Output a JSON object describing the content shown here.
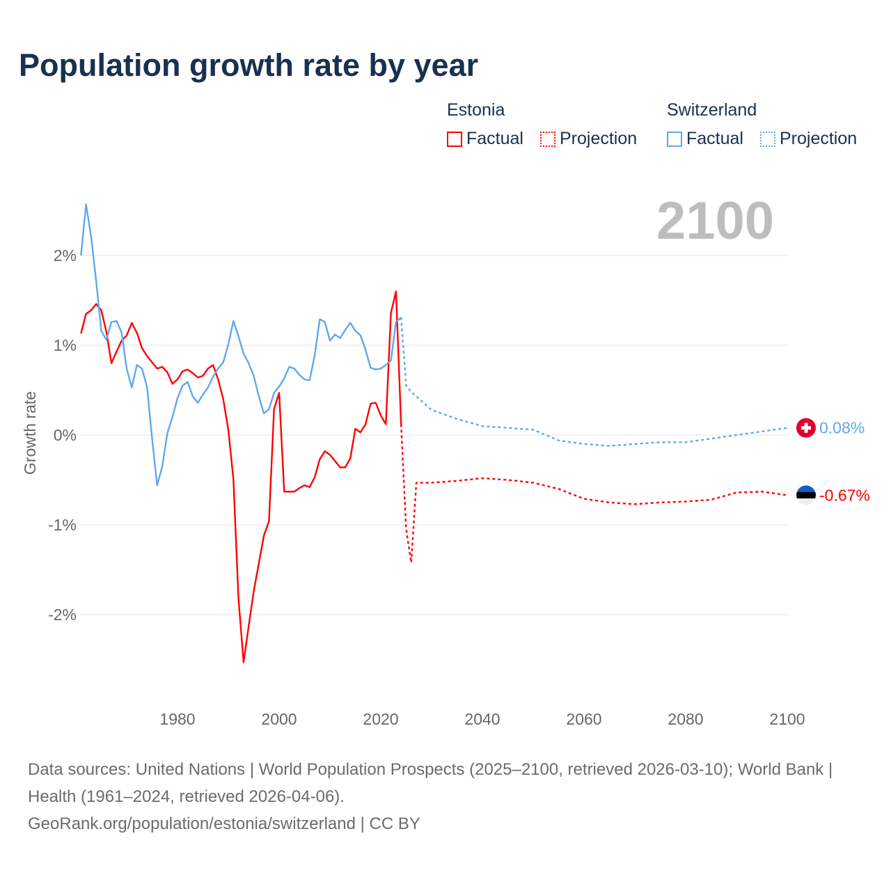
{
  "title": "Population growth rate by year",
  "legend": {
    "groups": [
      {
        "name": "Estonia",
        "factual": "Factual",
        "projection": "Projection",
        "color": "#ff0000"
      },
      {
        "name": "Switzerland",
        "factual": "Factual",
        "projection": "Projection",
        "color": "#5fa8ec"
      }
    ]
  },
  "current_year": "2100",
  "end_labels": {
    "switzerland": "0.08%",
    "estonia": "-0.67%"
  },
  "footer": {
    "line1": "Data sources: United Nations | World Population Prospects (2025–2100, retrieved 2026-03-10); World Bank | Health (1961–2024, retrieved 2026-04-06).",
    "line2": "GeoRank.org/population/estonia/switzerland | CC BY"
  },
  "chart_data": {
    "type": "line",
    "title": "Population growth rate by year",
    "xlabel": "",
    "ylabel": "Growth rate",
    "xlim": [
      1961,
      2100
    ],
    "ylim": [
      -2.9,
      2.6
    ],
    "grid": true,
    "legend_position": "top-right",
    "xticks": [
      1980,
      2000,
      2020,
      2040,
      2060,
      2080,
      2100
    ],
    "xtick_labels": [
      "1980",
      "2000",
      "2020",
      "2040",
      "2060",
      "2080",
      "2100"
    ],
    "yticks": [
      2,
      1,
      0,
      -1,
      -2
    ],
    "ytick_labels": [
      "2%",
      "1%",
      "0%",
      "-1%",
      "-2%"
    ],
    "series": [
      {
        "name": "Estonia",
        "kind": "factual",
        "color": "#ff0000",
        "x_start": 1961,
        "values": [
          1.13,
          1.35,
          1.39,
          1.46,
          1.39,
          1.15,
          0.8,
          0.93,
          1.05,
          1.11,
          1.25,
          1.14,
          0.97,
          0.88,
          0.81,
          0.74,
          0.76,
          0.7,
          0.57,
          0.62,
          0.71,
          0.73,
          0.69,
          0.64,
          0.66,
          0.74,
          0.78,
          0.62,
          0.4,
          0.06,
          -0.49,
          -1.82,
          -2.53,
          -2.13,
          -1.74,
          -1.43,
          -1.12,
          -0.96,
          0.29,
          0.47,
          -0.63,
          -0.63,
          -0.63,
          -0.59,
          -0.56,
          -0.58,
          -0.47,
          -0.27,
          -0.18,
          -0.22,
          -0.29,
          -0.36,
          -0.36,
          -0.26,
          0.07,
          0.03,
          0.12,
          0.35,
          0.36,
          0.22,
          0.12,
          1.36,
          1.6,
          0.12
        ]
      },
      {
        "name": "Estonia",
        "kind": "projection",
        "color": "#ff0000",
        "points": [
          [
            2024,
            0.12
          ],
          [
            2025,
            -1.05
          ],
          [
            2026,
            -1.42
          ],
          [
            2027,
            -0.53
          ],
          [
            2030,
            -0.53
          ],
          [
            2035,
            -0.51
          ],
          [
            2040,
            -0.48
          ],
          [
            2045,
            -0.5
          ],
          [
            2050,
            -0.53
          ],
          [
            2055,
            -0.6
          ],
          [
            2060,
            -0.71
          ],
          [
            2065,
            -0.75
          ],
          [
            2070,
            -0.77
          ],
          [
            2075,
            -0.75
          ],
          [
            2080,
            -0.74
          ],
          [
            2085,
            -0.72
          ],
          [
            2090,
            -0.64
          ],
          [
            2095,
            -0.63
          ],
          [
            2100,
            -0.67
          ]
        ]
      },
      {
        "name": "Switzerland",
        "kind": "factual",
        "color": "#5fa8ec",
        "x_start": 1961,
        "values": [
          2.0,
          2.57,
          2.21,
          1.71,
          1.16,
          1.06,
          1.26,
          1.27,
          1.14,
          0.74,
          0.53,
          0.78,
          0.74,
          0.54,
          -0.04,
          -0.56,
          -0.35,
          0.02,
          0.2,
          0.41,
          0.55,
          0.59,
          0.43,
          0.36,
          0.45,
          0.53,
          0.65,
          0.74,
          0.81,
          1.01,
          1.27,
          1.1,
          0.91,
          0.8,
          0.66,
          0.43,
          0.24,
          0.29,
          0.47,
          0.54,
          0.63,
          0.76,
          0.74,
          0.67,
          0.62,
          0.61,
          0.89,
          1.29,
          1.26,
          1.05,
          1.12,
          1.08,
          1.17,
          1.25,
          1.16,
          1.11,
          0.95,
          0.75,
          0.73,
          0.74,
          0.78,
          0.83,
          1.26,
          1.31
        ]
      },
      {
        "name": "Switzerland",
        "kind": "projection",
        "color": "#5fa8ec",
        "points": [
          [
            2024,
            1.31
          ],
          [
            2025,
            0.55
          ],
          [
            2026,
            0.48
          ],
          [
            2030,
            0.28
          ],
          [
            2035,
            0.18
          ],
          [
            2040,
            0.1
          ],
          [
            2045,
            0.08
          ],
          [
            2050,
            0.06
          ],
          [
            2055,
            -0.06
          ],
          [
            2060,
            -0.1
          ],
          [
            2065,
            -0.12
          ],
          [
            2070,
            -0.1
          ],
          [
            2075,
            -0.08
          ],
          [
            2080,
            -0.08
          ],
          [
            2085,
            -0.04
          ],
          [
            2090,
            0.0
          ],
          [
            2095,
            0.04
          ],
          [
            2100,
            0.08
          ]
        ]
      }
    ]
  }
}
